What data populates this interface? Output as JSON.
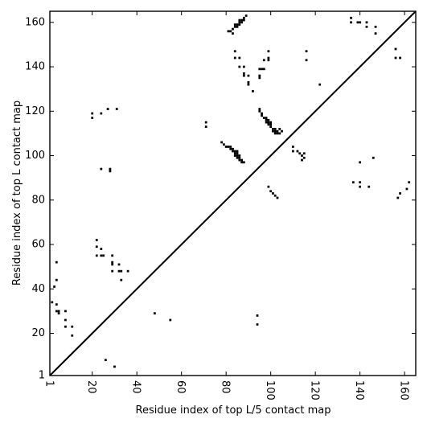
{
  "chart_data": {
    "type": "scatter",
    "xlabel": "Residue index of top L/5 contact map",
    "ylabel": "Residue index of top L contact map",
    "xlim": [
      1,
      165
    ],
    "ylim": [
      1,
      165
    ],
    "x_ticks": [
      1,
      20,
      40,
      60,
      80,
      100,
      120,
      140,
      160
    ],
    "y_ticks": [
      1,
      20,
      40,
      60,
      80,
      100,
      120,
      140,
      160
    ],
    "grid": false,
    "marker": "square",
    "marker_color": "#000000",
    "diagonal_color": "#000000",
    "series": [
      {
        "region": "upper-left",
        "points": [
          [
            20,
            117
          ],
          [
            20,
            119
          ],
          [
            24,
            119
          ],
          [
            27,
            121
          ],
          [
            31,
            121
          ],
          [
            71,
            113
          ],
          [
            71,
            115
          ],
          [
            78,
            106
          ],
          [
            79,
            105
          ],
          [
            80,
            104
          ],
          [
            81,
            104
          ],
          [
            82,
            103
          ],
          [
            82,
            104
          ],
          [
            83,
            102
          ],
          [
            83,
            103
          ],
          [
            84,
            100
          ],
          [
            84,
            101
          ],
          [
            84,
            102
          ],
          [
            85,
            99
          ],
          [
            85,
            100
          ],
          [
            85,
            101
          ],
          [
            85,
            102
          ],
          [
            86,
            98
          ],
          [
            86,
            99
          ],
          [
            86,
            100
          ],
          [
            87,
            97
          ],
          [
            87,
            98
          ],
          [
            88,
            97
          ],
          [
            81,
            156
          ],
          [
            82,
            156
          ],
          [
            83,
            155
          ],
          [
            83,
            157
          ],
          [
            84,
            158
          ],
          [
            84,
            159
          ],
          [
            85,
            158
          ],
          [
            85,
            159
          ],
          [
            86,
            159
          ],
          [
            86,
            160
          ],
          [
            86,
            161
          ],
          [
            87,
            160
          ],
          [
            87,
            161
          ],
          [
            88,
            161
          ],
          [
            88,
            162
          ],
          [
            89,
            163
          ],
          [
            84,
            147
          ],
          [
            84,
            144
          ],
          [
            86,
            144
          ],
          [
            86,
            140
          ],
          [
            88,
            140
          ],
          [
            88,
            137
          ],
          [
            88,
            136
          ],
          [
            90,
            136
          ],
          [
            90,
            133
          ],
          [
            90,
            132
          ],
          [
            92,
            129
          ],
          [
            95,
            136
          ],
          [
            95,
            135
          ],
          [
            95,
            139
          ],
          [
            96,
            139
          ],
          [
            97,
            139
          ],
          [
            97,
            143
          ],
          [
            99,
            143
          ],
          [
            99,
            144
          ],
          [
            99,
            147
          ],
          [
            95,
            121
          ],
          [
            95,
            120
          ],
          [
            96,
            119
          ],
          [
            96,
            118
          ],
          [
            97,
            117
          ],
          [
            98,
            117
          ],
          [
            98,
            116
          ],
          [
            98,
            115
          ],
          [
            99,
            116
          ],
          [
            99,
            115
          ],
          [
            99,
            114
          ],
          [
            100,
            115
          ],
          [
            100,
            114
          ],
          [
            100,
            113
          ],
          [
            101,
            112
          ],
          [
            101,
            111
          ],
          [
            102,
            112
          ],
          [
            102,
            111
          ],
          [
            102,
            110
          ],
          [
            103,
            111
          ],
          [
            103,
            110
          ],
          [
            104,
            110
          ],
          [
            104,
            112
          ],
          [
            105,
            111
          ],
          [
            110,
            104
          ],
          [
            110,
            102
          ],
          [
            112,
            102
          ],
          [
            113,
            101
          ],
          [
            114,
            100
          ],
          [
            114,
            98
          ],
          [
            115,
            101
          ],
          [
            115,
            99
          ],
          [
            116,
            147
          ],
          [
            116,
            143
          ],
          [
            122,
            132
          ],
          [
            136,
            162
          ],
          [
            136,
            160
          ],
          [
            139,
            160
          ],
          [
            140,
            160
          ],
          [
            143,
            160
          ],
          [
            143,
            158
          ],
          [
            147,
            158
          ],
          [
            147,
            155
          ],
          [
            156,
            148
          ],
          [
            156,
            144
          ],
          [
            158,
            144
          ],
          [
            137,
            88
          ],
          [
            140,
            88
          ],
          [
            140,
            86
          ],
          [
            144,
            86
          ],
          [
            140,
            97
          ],
          [
            146,
            99
          ],
          [
            99,
            86
          ],
          [
            100,
            84
          ],
          [
            101,
            83
          ],
          [
            102,
            82
          ],
          [
            103,
            81
          ],
          [
            157,
            81
          ],
          [
            158,
            83
          ],
          [
            161,
            85
          ],
          [
            162,
            88
          ]
        ]
      },
      {
        "region": "lower-right",
        "points": [
          [
            2,
            34
          ],
          [
            3,
            41
          ],
          [
            4,
            44
          ],
          [
            4,
            52
          ],
          [
            4,
            33
          ],
          [
            4,
            30
          ],
          [
            5,
            29
          ],
          [
            5,
            30
          ],
          [
            8,
            30
          ],
          [
            8,
            26
          ],
          [
            8,
            23
          ],
          [
            11,
            23
          ],
          [
            11,
            19
          ],
          [
            22,
            62
          ],
          [
            22,
            59
          ],
          [
            22,
            55
          ],
          [
            24,
            58
          ],
          [
            24,
            55
          ],
          [
            25,
            55
          ],
          [
            28,
            93
          ],
          [
            28,
            94
          ],
          [
            24,
            94
          ],
          [
            29,
            55
          ],
          [
            29,
            52
          ],
          [
            29,
            51
          ],
          [
            29,
            48
          ],
          [
            32,
            51
          ],
          [
            32,
            48
          ],
          [
            33,
            44
          ],
          [
            33,
            48
          ],
          [
            36,
            48
          ],
          [
            26,
            8
          ],
          [
            30,
            5
          ],
          [
            48,
            29
          ],
          [
            55,
            26
          ],
          [
            94,
            28
          ],
          [
            94,
            24
          ]
        ]
      }
    ]
  }
}
